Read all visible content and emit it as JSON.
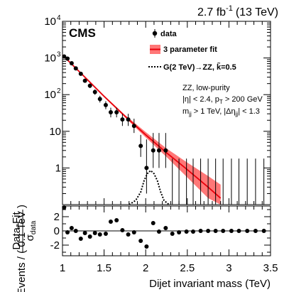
{
  "chart_data": {
    "type": "scatter",
    "lumi_value": "2.7 fb",
    "lumi_exp": "-1",
    "lumi_energy": "(13 TeV)",
    "experiment": "CMS",
    "xlabel": "Dijet invariant mass (TeV)",
    "ylabel": "Events / ( 0.1 TeV )",
    "ylabel_ratio": {
      "num": "Data-Fit",
      "den_sigma": "σ",
      "den_sub": "data"
    },
    "xlim": [
      1.0,
      3.5
    ],
    "ylim_log": [
      0.1,
      10000
    ],
    "ylim_ratio": [
      -3.5,
      3.5
    ],
    "x_ticks": [
      "1",
      "1.5",
      "2",
      "2.5",
      "3",
      "3.5"
    ],
    "y_ticks": [
      {
        "v": 1,
        "base": "1"
      },
      {
        "v": 10,
        "base": "10"
      },
      {
        "v": 100,
        "base": "10",
        "exp": "2"
      },
      {
        "v": 1000,
        "base": "10",
        "exp": "3"
      },
      {
        "v": 10000,
        "base": "10",
        "exp": "4"
      }
    ],
    "ratio_ticks": [
      "-2",
      "0",
      "2"
    ],
    "legend": {
      "position": "top-right",
      "entries": [
        {
          "key": "data",
          "label": "data"
        },
        {
          "key": "fit",
          "label": "3 parameter fit"
        },
        {
          "key": "signal",
          "label": "G(2 TeV)→ZZ, k̃=0.5"
        }
      ]
    },
    "annotation": [
      "ZZ, low-purity",
      "|η| < 2.4, p_T > 200 GeV",
      "m_jj > 1 TeV, |Δη_jj| < 1.3"
    ],
    "colors": {
      "fit": "#e8000b",
      "band": "#ff7777",
      "data": "#000000"
    },
    "data_points": [
      {
        "x": 1.02,
        "y": 1100,
        "lo": 1035,
        "hi": 1166
      },
      {
        "x": 1.06,
        "y": 960,
        "lo": 900,
        "hi": 1022
      },
      {
        "x": 1.11,
        "y": 720,
        "lo": 668,
        "hi": 774
      },
      {
        "x": 1.16,
        "y": 520,
        "lo": 476,
        "hi": 566
      },
      {
        "x": 1.22,
        "y": 370,
        "lo": 334,
        "hi": 408
      },
      {
        "x": 1.27,
        "y": 240,
        "lo": 211,
        "hi": 271
      },
      {
        "x": 1.33,
        "y": 175,
        "lo": 151,
        "hi": 201
      },
      {
        "x": 1.39,
        "y": 118,
        "lo": 99,
        "hi": 139
      },
      {
        "x": 1.45,
        "y": 76,
        "lo": 61,
        "hi": 93
      },
      {
        "x": 1.52,
        "y": 52,
        "lo": 40,
        "hi": 66
      },
      {
        "x": 1.58,
        "y": 33,
        "lo": 24,
        "hi": 44
      },
      {
        "x": 1.65,
        "y": 33,
        "lo": 24,
        "hi": 44
      },
      {
        "x": 1.72,
        "y": 21,
        "lo": 14,
        "hi": 30
      },
      {
        "x": 1.79,
        "y": 21,
        "lo": 14,
        "hi": 30
      },
      {
        "x": 1.86,
        "y": 14,
        "lo": 9,
        "hi": 22
      },
      {
        "x": 1.94,
        "y": 4,
        "lo": 2,
        "hi": 8
      },
      {
        "x": 2.01,
        "y": 1,
        "lo": 0.2,
        "hi": 6
      },
      {
        "x": 2.09,
        "y": 3,
        "lo": 1,
        "hi": 9
      },
      {
        "x": 2.16,
        "y": 3,
        "lo": 1,
        "hi": 9
      },
      {
        "x": 2.24,
        "y": 3,
        "lo": 1,
        "hi": 9
      }
    ],
    "empty_bins": {
      "x": [
        2.32,
        2.4,
        2.49,
        2.57,
        2.66,
        2.75,
        2.84,
        2.93,
        3.03,
        3.12,
        3.22,
        3.32,
        3.42
      ],
      "hi": [
        1.8,
        1.8,
        1.8,
        1.8,
        1.8,
        1.8,
        1.8,
        1.8,
        1.8,
        1.8,
        1.8,
        1.8,
        1.8
      ]
    },
    "fit_curve": {
      "x": [
        1.0,
        1.25,
        1.5,
        1.75,
        2.0,
        2.25,
        2.5,
        2.75,
        2.9
      ],
      "y": [
        1200,
        330,
        90,
        26,
        8.0,
        2.6,
        0.9,
        0.3,
        0.15
      ],
      "band_lo": [
        1160,
        315,
        85,
        24,
        6.8,
        2.0,
        0.55,
        0.15,
        0.07
      ],
      "band_hi": [
        1240,
        345,
        95,
        28,
        9.5,
        3.4,
        1.4,
        0.6,
        0.35
      ]
    },
    "signal_curve": {
      "x": [
        1.8,
        1.88,
        1.94,
        1.98,
        2.02,
        2.06,
        2.1,
        2.14,
        2.18,
        2.22,
        2.28
      ],
      "y": [
        0.1,
        0.13,
        0.22,
        0.45,
        0.7,
        0.85,
        0.7,
        0.45,
        0.22,
        0.13,
        0.1
      ]
    },
    "pulls": {
      "x": [
        1.02,
        1.06,
        1.11,
        1.16,
        1.22,
        1.27,
        1.33,
        1.39,
        1.45,
        1.52,
        1.58,
        1.65,
        1.72,
        1.79,
        1.86,
        1.94,
        2.01,
        2.09,
        2.16,
        2.24,
        2.32,
        2.4,
        2.49,
        2.57,
        2.66,
        2.75,
        2.84,
        2.93,
        3.03,
        3.12,
        3.22,
        3.32,
        3.42
      ],
      "y": [
        3.3,
        -0.2,
        0.4,
        0.0,
        -1.1,
        -0.3,
        -0.8,
        -0.3,
        -0.5,
        -0.4,
        1.3,
        1.5,
        0.1,
        -0.5,
        -0.2,
        -1.4,
        -2.2,
        1.1,
        -0.1,
        0.4,
        -0.4,
        -0.2,
        -0.1,
        -0.1,
        0.0,
        0.0,
        0.0,
        0.0,
        0.0,
        0.0,
        0.0,
        0.0,
        0.0
      ]
    }
  }
}
